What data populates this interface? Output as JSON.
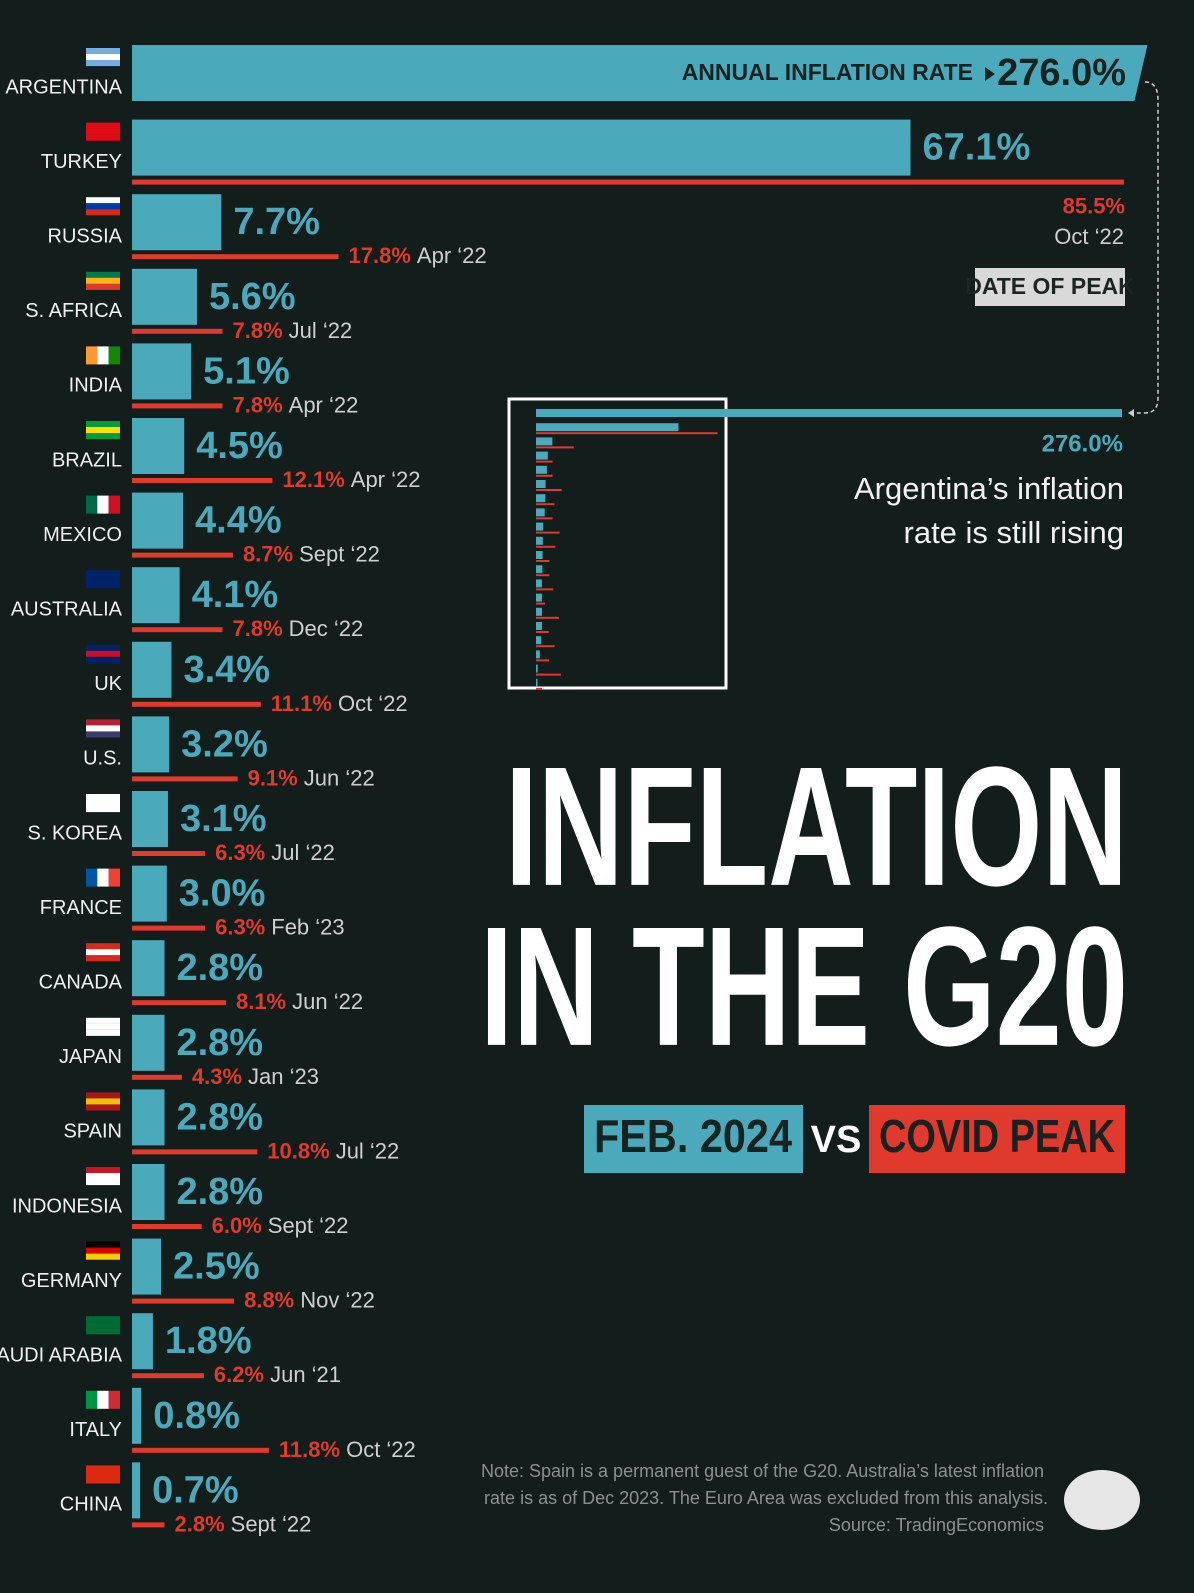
{
  "chart_data": {
    "type": "bar",
    "title": [
      "INFLATION",
      "IN THE G20"
    ],
    "versus": "VS",
    "categories": [
      "ARGENTINA",
      "TURKEY",
      "RUSSIA",
      "S. AFRICA",
      "INDIA",
      "BRAZIL",
      "MEXICO",
      "AUSTRALIA",
      "UK",
      "U.S.",
      "S. KOREA",
      "FRANCE",
      "CANADA",
      "JAPAN",
      "SPAIN",
      "INDONESIA",
      "GERMANY",
      "SAUDI ARABIA",
      "ITALY",
      "CHINA"
    ],
    "series": [
      {
        "name": "FEB. 2024",
        "color": "#4aaabb",
        "values": [
          276.0,
          67.1,
          7.7,
          5.6,
          5.1,
          4.5,
          4.4,
          4.1,
          3.4,
          3.2,
          3.1,
          3.0,
          2.8,
          2.8,
          2.8,
          2.8,
          2.5,
          1.8,
          0.8,
          0.7
        ],
        "value_labels": [
          "276.0%",
          "67.1%",
          "7.7%",
          "5.6%",
          "5.1%",
          "4.5%",
          "4.4%",
          "4.1%",
          "3.4%",
          "3.2%",
          "3.1%",
          "3.0%",
          "2.8%",
          "2.8%",
          "2.8%",
          "2.8%",
          "2.5%",
          "1.8%",
          "0.8%",
          "0.7%"
        ]
      },
      {
        "name": "COVID PEAK",
        "color": "#e0392d",
        "values": [
          null,
          85.5,
          17.8,
          7.8,
          7.8,
          12.1,
          8.7,
          7.8,
          11.1,
          9.1,
          6.3,
          6.3,
          8.1,
          4.3,
          10.8,
          6.0,
          8.8,
          6.2,
          11.8,
          2.8
        ],
        "value_labels": [
          null,
          "85.5%",
          "17.8%",
          "7.8%",
          "7.8%",
          "12.1%",
          "8.7%",
          "7.8%",
          "11.1%",
          "9.1%",
          "6.3%",
          "6.3%",
          "8.1%",
          "4.3%",
          "10.8%",
          "6.0%",
          "8.8%",
          "6.2%",
          "11.8%",
          "2.8%"
        ],
        "dates": [
          null,
          "Oct ‘22",
          "Apr ‘22",
          "Jul ‘22",
          "Apr ‘22",
          "Apr ‘22",
          "Sept ‘22",
          "Dec ‘22",
          "Oct ‘22",
          "Jun ‘22",
          "Jul ‘22",
          "Feb ‘23",
          "Jun ‘22",
          "Jan ‘23",
          "Jul ‘22",
          "Sept ‘22",
          "Nov ‘22",
          "Jun ‘21",
          "Oct ‘22",
          "Sept ‘22"
        ]
      }
    ],
    "xlim": [
      0,
      88
    ],
    "bar_label": "ANNUAL INFLATION RATE",
    "date_label": "DATE OF PEAK",
    "annotation": [
      "Argentina’s inflation",
      "rate is still rising"
    ],
    "note": [
      "Note: Spain is a permanent guest of the G20. Australia’s latest inflation",
      "rate is as of Dec 2023. The Euro Area was excluded from this analysis.",
      "Source: TradingEconomics"
    ]
  }
}
